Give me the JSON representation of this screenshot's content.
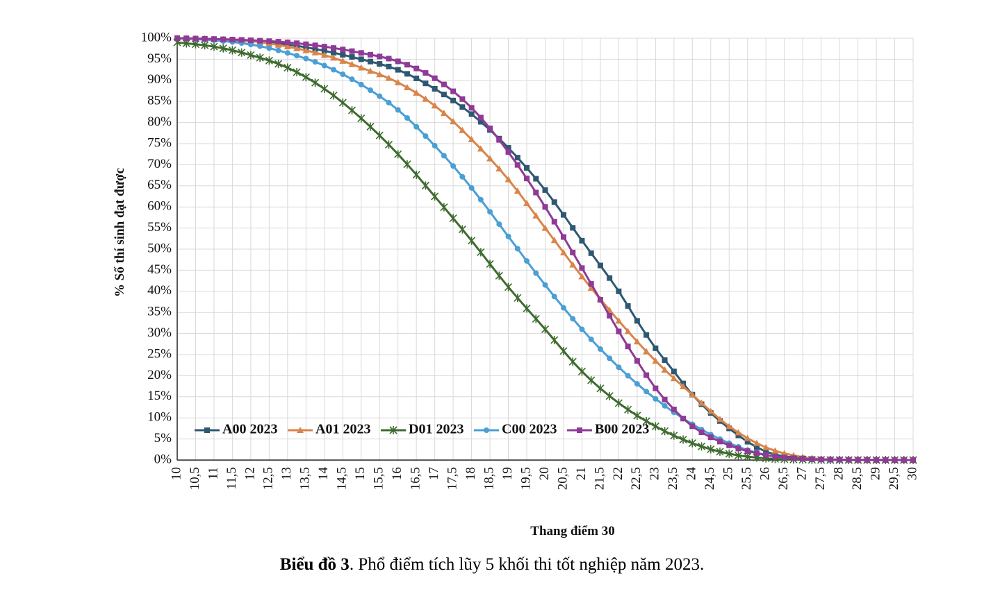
{
  "chart_data": {
    "type": "line",
    "title": "",
    "xlabel": "Thang điểm 30",
    "ylabel": "% Số thí sinh đạt được",
    "xlim": [
      10,
      30
    ],
    "ylim": [
      0,
      1
    ],
    "x_tick_labels": [
      "10",
      "10,5",
      "11",
      "11,5",
      "12",
      "12,5",
      "13",
      "13,5",
      "14",
      "14,5",
      "15",
      "15,5",
      "16",
      "16,5",
      "17",
      "17,5",
      "18",
      "18,5",
      "19",
      "19,5",
      "20",
      "20,5",
      "21",
      "21,5",
      "22",
      "22,5",
      "23",
      "23,5",
      "24",
      "24,5",
      "25",
      "25,5",
      "26",
      "26,5",
      "27",
      "27,5",
      "28",
      "28,5",
      "29",
      "29,5",
      "30"
    ],
    "y_tick_labels": [
      "0%",
      "5%",
      "10%",
      "15%",
      "20%",
      "25%",
      "30%",
      "35%",
      "40%",
      "45%",
      "50%",
      "55%",
      "60%",
      "65%",
      "70%",
      "75%",
      "80%",
      "85%",
      "90%",
      "95%",
      "100%"
    ],
    "grid": true,
    "legend_position": "bottom-left-inside",
    "series": [
      {
        "name": "A00 2023",
        "color": "#2e5871",
        "marker": "square",
        "x": [
          10,
          11,
          12,
          13,
          14,
          15,
          16,
          17,
          18,
          19,
          20,
          21,
          22,
          22.5,
          23,
          23.5,
          24,
          25,
          26,
          27,
          28,
          30
        ],
        "y": [
          1.0,
          0.997,
          0.993,
          0.985,
          0.97,
          0.95,
          0.925,
          0.88,
          0.82,
          0.74,
          0.64,
          0.52,
          0.4,
          0.33,
          0.265,
          0.21,
          0.155,
          0.075,
          0.02,
          0.004,
          0.001,
          0.0
        ]
      },
      {
        "name": "A01 2023",
        "color": "#d9844a",
        "marker": "triangle",
        "x": [
          10,
          11,
          12,
          13,
          14,
          15,
          16,
          17,
          18,
          19,
          20,
          21,
          22,
          23,
          24,
          25,
          26,
          27,
          28,
          30
        ],
        "y": [
          1.0,
          0.998,
          0.993,
          0.98,
          0.96,
          0.93,
          0.895,
          0.84,
          0.76,
          0.665,
          0.55,
          0.435,
          0.33,
          0.235,
          0.155,
          0.08,
          0.03,
          0.007,
          0.001,
          0.0
        ]
      },
      {
        "name": "D01 2023",
        "color": "#3e6b2f",
        "marker": "star",
        "x": [
          10,
          11,
          12,
          13,
          14,
          15,
          16,
          17,
          18,
          19,
          20,
          21,
          22,
          23,
          24,
          25,
          26,
          27,
          28,
          30
        ],
        "y": [
          0.99,
          0.98,
          0.96,
          0.93,
          0.88,
          0.81,
          0.725,
          0.625,
          0.52,
          0.41,
          0.31,
          0.21,
          0.135,
          0.08,
          0.04,
          0.015,
          0.004,
          0.001,
          0.0,
          0.0
        ]
      },
      {
        "name": "C00 2023",
        "color": "#4a9fd4",
        "marker": "circle",
        "x": [
          10,
          11,
          12,
          13,
          14,
          15,
          16,
          17,
          18,
          19,
          20,
          21,
          22,
          23,
          24,
          25,
          26,
          27,
          28,
          30
        ],
        "y": [
          1.0,
          0.995,
          0.985,
          0.965,
          0.935,
          0.89,
          0.83,
          0.745,
          0.645,
          0.53,
          0.415,
          0.31,
          0.22,
          0.145,
          0.085,
          0.04,
          0.012,
          0.003,
          0.0,
          0.0
        ]
      },
      {
        "name": "B00 2023",
        "color": "#8e3a96",
        "marker": "square",
        "x": [
          10,
          11,
          12,
          13,
          14,
          15,
          16,
          17,
          18,
          19,
          20,
          21,
          21.5,
          22,
          22.5,
          23,
          23.5,
          24,
          25,
          26,
          27,
          28,
          30
        ],
        "y": [
          1.0,
          0.998,
          0.995,
          0.99,
          0.98,
          0.965,
          0.945,
          0.905,
          0.835,
          0.73,
          0.6,
          0.455,
          0.38,
          0.305,
          0.235,
          0.17,
          0.12,
          0.08,
          0.035,
          0.012,
          0.003,
          0.001,
          0.0
        ]
      }
    ]
  },
  "caption": {
    "bold": "Biểu đồ 3",
    "text": ". Phổ điểm tích lũy 5 khối thi tốt nghiệp năm 2023."
  }
}
